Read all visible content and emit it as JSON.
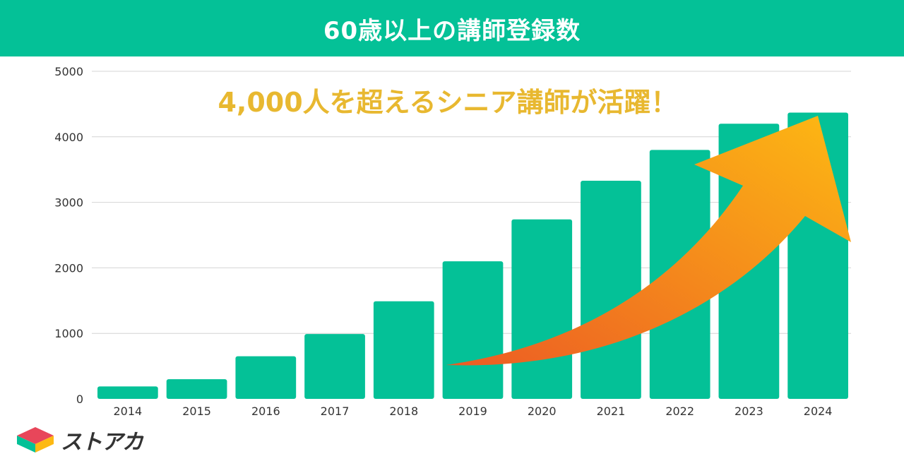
{
  "header": {
    "title": "60歳以上の講師登録数"
  },
  "chart_data": {
    "type": "bar",
    "categories": [
      "2014",
      "2015",
      "2016",
      "2017",
      "2018",
      "2019",
      "2020",
      "2021",
      "2022",
      "2023",
      "2024"
    ],
    "values": [
      190,
      300,
      650,
      990,
      1490,
      2100,
      2740,
      3330,
      3800,
      4200,
      4370
    ],
    "title": "60歳以上の講師登録数",
    "ylim": [
      0,
      5000
    ],
    "yticks": [
      0,
      1000,
      2000,
      3000,
      4000,
      5000
    ],
    "grid": true,
    "annotation": "4,000人を超えるシニア講師が活躍！",
    "colors": {
      "bar": "#04c197",
      "annotation": "#e8b830",
      "arrow_start": "#ec5b24",
      "arrow_end": "#fdb913",
      "grid": "#d4d4d4",
      "axis_text": "#333333"
    }
  },
  "logo": {
    "text": "ストアカ"
  }
}
